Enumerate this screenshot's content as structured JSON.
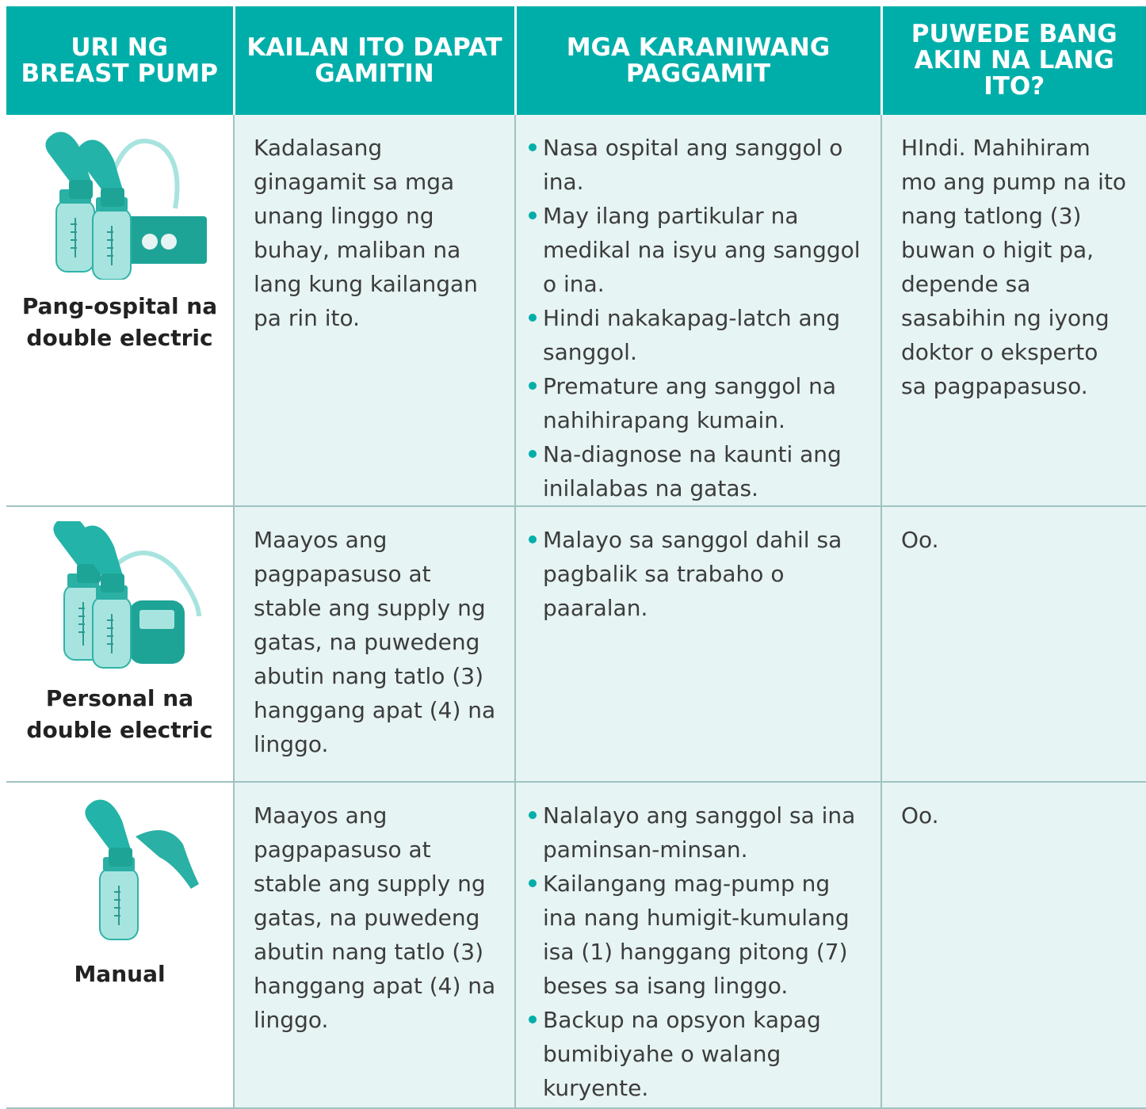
{
  "table": {
    "header": [
      "URI NG BREAST PUMP",
      "KAILAN ITO DAPAT GAMITIN",
      "MGA KARANIWANG PAGGAMIT",
      "PUWEDE BANG AKIN NA LANG ITO?"
    ],
    "rows": [
      {
        "pump": "Pang-ospital na double electric",
        "when": "Kadalasang ginagamit sa mga unang linggo ng buhay, maliban na lang kung kailangan pa rin ito.",
        "uses": [
          "Nasa ospital ang sanggol o ina.",
          "May ilang partikular na medikal na isyu ang sanggol o ina.",
          "Hindi nakakapag-latch ang sanggol.",
          "Premature ang sanggol na nahihirapang kumain.",
          "Na-diagnose na kaunti ang inilalabas na gatas."
        ],
        "own": "HIndi. Mahihiram mo ang pump na ito nang tatlong (3) buwan o higit pa, depende sa sasabihin ng iyong doktor o eksperto sa pagpapasuso."
      },
      {
        "pump": "Personal na double electric",
        "when": "Maayos ang pagpapasuso at stable ang supply ng gatas, na puwedeng abutin nang tatlo (3) hanggang apat (4) na linggo.",
        "uses": [
          "Malayo sa sanggol dahil sa pagbalik sa trabaho o paaralan."
        ],
        "own": "Oo."
      },
      {
        "pump": "Manual",
        "when": "Maayos ang pagpapasuso at stable ang supply ng gatas, na puwedeng abutin nang tatlo (3) hanggang apat (4) na linggo.",
        "uses": [
          "Nalalayo ang sanggol sa ina paminsan-minsan.",
          "Kailangang mag-pump ng ina nang humigit-kumulang isa (1) hanggang pitong (7) beses sa isang linggo.",
          "Backup na opsyon kapag bumibiyahe o walang kuryente."
        ],
        "own": "Oo."
      }
    ]
  }
}
